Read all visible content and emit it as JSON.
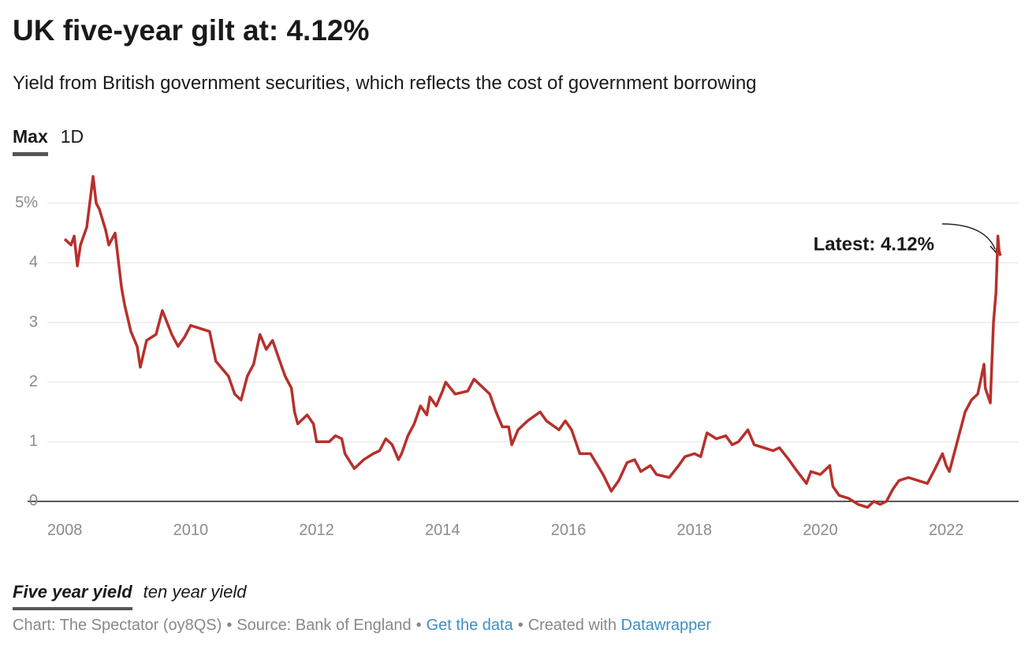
{
  "chart_data": {
    "type": "line",
    "title": "UK five-year gilt at: 4.12%",
    "subtitle": "Yield from British government securities, which reflects the cost of government borrowing",
    "x": [
      2008.0,
      2008.1,
      2008.15,
      2008.2,
      2008.25,
      2008.35,
      2008.45,
      2008.5,
      2008.55,
      2008.65,
      2008.7,
      2008.8,
      2008.9,
      2008.95,
      2009.05,
      2009.15,
      2009.2,
      2009.3,
      2009.45,
      2009.55,
      2009.7,
      2009.8,
      2009.9,
      2010.0,
      2010.15,
      2010.3,
      2010.4,
      2010.6,
      2010.7,
      2010.8,
      2010.9,
      2011.0,
      2011.1,
      2011.2,
      2011.3,
      2011.4,
      2011.5,
      2011.6,
      2011.65,
      2011.7,
      2011.85,
      2011.95,
      2012.0,
      2012.2,
      2012.3,
      2012.4,
      2012.45,
      2012.6,
      2012.75,
      2012.9,
      2013.0,
      2013.1,
      2013.2,
      2013.3,
      2013.35,
      2013.45,
      2013.55,
      2013.65,
      2013.75,
      2013.8,
      2013.9,
      2014.0,
      2014.05,
      2014.2,
      2014.4,
      2014.5,
      2014.6,
      2014.75,
      2014.85,
      2014.95,
      2015.05,
      2015.1,
      2015.2,
      2015.35,
      2015.55,
      2015.65,
      2015.85,
      2015.95,
      2016.05,
      2016.18,
      2016.35,
      2016.55,
      2016.68,
      2016.8,
      2016.93,
      2017.05,
      2017.15,
      2017.3,
      2017.4,
      2017.6,
      2017.75,
      2017.85,
      2018.0,
      2018.1,
      2018.15,
      2018.2,
      2018.35,
      2018.5,
      2018.6,
      2018.7,
      2018.85,
      2018.95,
      2019.1,
      2019.25,
      2019.35,
      2019.5,
      2019.6,
      2019.78,
      2019.85,
      2020.0,
      2020.1,
      2020.15,
      2020.2,
      2020.3,
      2020.45,
      2020.6,
      2020.75,
      2020.85,
      2020.95,
      2021.05,
      2021.15,
      2021.25,
      2021.4,
      2021.55,
      2021.7,
      2021.8,
      2021.94,
      2022.0,
      2022.05,
      2022.15,
      2022.25,
      2022.3,
      2022.4,
      2022.5,
      2022.6,
      2022.62,
      2022.7,
      2022.72,
      2022.75,
      2022.79,
      2022.82,
      2022.84,
      2022.86
    ],
    "series": [
      {
        "name": "Five year yield",
        "color": "#b7302b",
        "values": [
          4.4,
          4.3,
          4.45,
          3.95,
          4.3,
          4.6,
          5.45,
          5.0,
          4.9,
          4.55,
          4.3,
          4.5,
          3.6,
          3.3,
          2.85,
          2.6,
          2.25,
          2.7,
          2.8,
          3.2,
          2.8,
          2.6,
          2.75,
          2.95,
          2.9,
          2.85,
          2.35,
          2.1,
          1.8,
          1.7,
          2.1,
          2.3,
          2.8,
          2.55,
          2.7,
          2.4,
          2.1,
          1.9,
          1.5,
          1.3,
          1.45,
          1.3,
          1.0,
          1.0,
          1.1,
          1.05,
          0.8,
          0.55,
          0.7,
          0.8,
          0.85,
          1.05,
          0.95,
          0.7,
          0.8,
          1.1,
          1.3,
          1.6,
          1.45,
          1.75,
          1.6,
          1.85,
          2.0,
          1.8,
          1.85,
          2.05,
          1.95,
          1.8,
          1.5,
          1.25,
          1.25,
          0.95,
          1.2,
          1.35,
          1.5,
          1.35,
          1.2,
          1.35,
          1.2,
          0.8,
          0.8,
          0.45,
          0.17,
          0.35,
          0.65,
          0.7,
          0.5,
          0.6,
          0.45,
          0.4,
          0.6,
          0.75,
          0.8,
          0.75,
          0.95,
          1.15,
          1.05,
          1.1,
          0.95,
          1.0,
          1.2,
          0.95,
          0.9,
          0.85,
          0.9,
          0.7,
          0.55,
          0.3,
          0.5,
          0.45,
          0.55,
          0.6,
          0.25,
          0.1,
          0.05,
          -0.05,
          -0.1,
          0.0,
          -0.05,
          0.0,
          0.2,
          0.35,
          0.4,
          0.35,
          0.3,
          0.5,
          0.8,
          0.6,
          0.5,
          0.9,
          1.3,
          1.5,
          1.7,
          1.8,
          2.3,
          1.9,
          1.65,
          2.2,
          3.0,
          3.5,
          4.45,
          4.2,
          4.12
        ]
      }
    ],
    "xlim": [
      2007.41,
      2023.15
    ],
    "xticks": [
      2008,
      2010,
      2012,
      2014,
      2016,
      2018,
      2020,
      2022
    ],
    "ylim": [
      -0.2,
      5.5
    ],
    "yticks": [
      0,
      1,
      2,
      3,
      4,
      {
        "value": 5,
        "label": "5%"
      }
    ],
    "grid": true,
    "annotations": [
      {
        "text": "Latest: 4.12%"
      }
    ]
  },
  "range_tabs": [
    "Max",
    "1D"
  ],
  "other_series_tab": "ten year yield",
  "footer": {
    "credit": "Chart: The Spectator (oy8QS)",
    "separator": "•",
    "source": "Source: Bank of England",
    "data_link": "Get the data",
    "created": "Created with",
    "tool_link": "Datawrapper"
  }
}
